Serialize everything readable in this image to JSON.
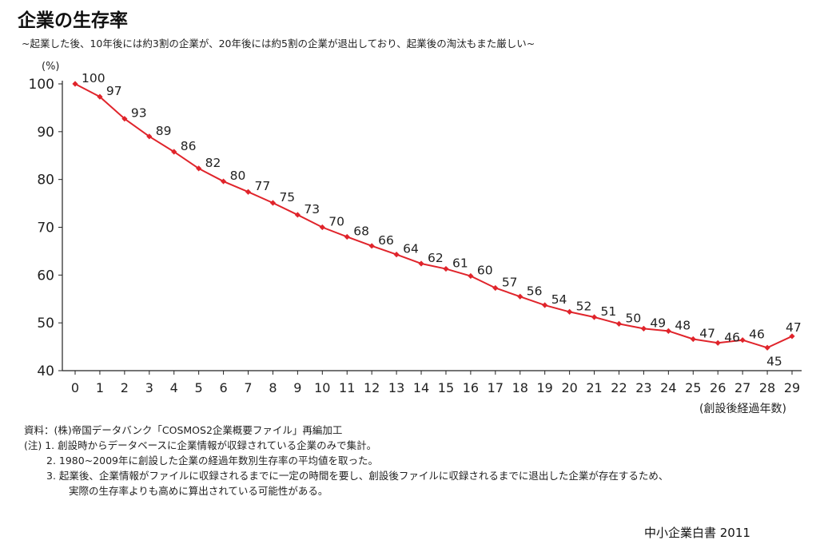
{
  "title": "企業の生存率",
  "subtitle": "~起業した後、10年後には約3割の企業が、20年後には約5割の企業が退出しており、起業後の淘汰もまた厳しい~",
  "y_unit": "(%)",
  "x_unit": "(創設後経過年数)",
  "notes": {
    "source": "資料：(株)帝国データバンク「COSMOS2企業概要ファイル」再編加工",
    "note1": "(注) 1. 創設時からデータベースに企業情報が収録されている企業のみで集計。",
    "note2": "2. 1980~2009年に創設した企業の経過年数別生存率の平均値を取った。",
    "note3a": "3. 起業後、企業情報がファイルに収録されるまでに一定の時間を要し、創設後ファイルに収録されるまでに退出した企業が存在するため、",
    "note3b": "実際の生存率よりも高めに算出されている可能性がある。"
  },
  "publisher": "中小企業白書 2011",
  "colors": {
    "line": "#e0242b",
    "axis": "#222222"
  },
  "chart_data": {
    "type": "line",
    "x": [
      0,
      1,
      2,
      3,
      4,
      5,
      6,
      7,
      8,
      9,
      10,
      11,
      12,
      13,
      14,
      15,
      16,
      17,
      18,
      19,
      20,
      21,
      22,
      23,
      24,
      25,
      26,
      27,
      28,
      29
    ],
    "y": [
      100,
      97.3,
      92.7,
      89,
      85.8,
      82.3,
      79.6,
      77.4,
      75.1,
      72.6,
      70,
      68,
      66.1,
      64.3,
      62.4,
      61.3,
      59.8,
      57.3,
      55.5,
      53.7,
      52.3,
      51.2,
      49.8,
      48.8,
      48.3,
      46.6,
      45.8,
      46.4,
      44.8,
      47.2
    ],
    "labels": [
      "100",
      "97",
      "93",
      "89",
      "86",
      "82",
      "80",
      "77",
      "75",
      "73",
      "70",
      "68",
      "66",
      "64",
      "62",
      "61",
      "60",
      "57",
      "56",
      "54",
      "52",
      "51",
      "50",
      "49",
      "48",
      "47",
      "46",
      "46",
      "45",
      "47"
    ],
    "x_tick_labels": [
      "0",
      "1",
      "2",
      "3",
      "4",
      "5",
      "6",
      "7",
      "8",
      "9",
      "10",
      "11",
      "12",
      "13",
      "14",
      "15",
      "16",
      "17",
      "18",
      "19",
      "20",
      "21",
      "22",
      "23",
      "24",
      "25",
      "26",
      "27",
      "28",
      "29"
    ],
    "y_ticks": [
      "40",
      "50",
      "60",
      "70",
      "80",
      "90",
      "100"
    ],
    "ylim": [
      40,
      100
    ],
    "xlim": [
      0,
      29
    ],
    "grid": false
  }
}
